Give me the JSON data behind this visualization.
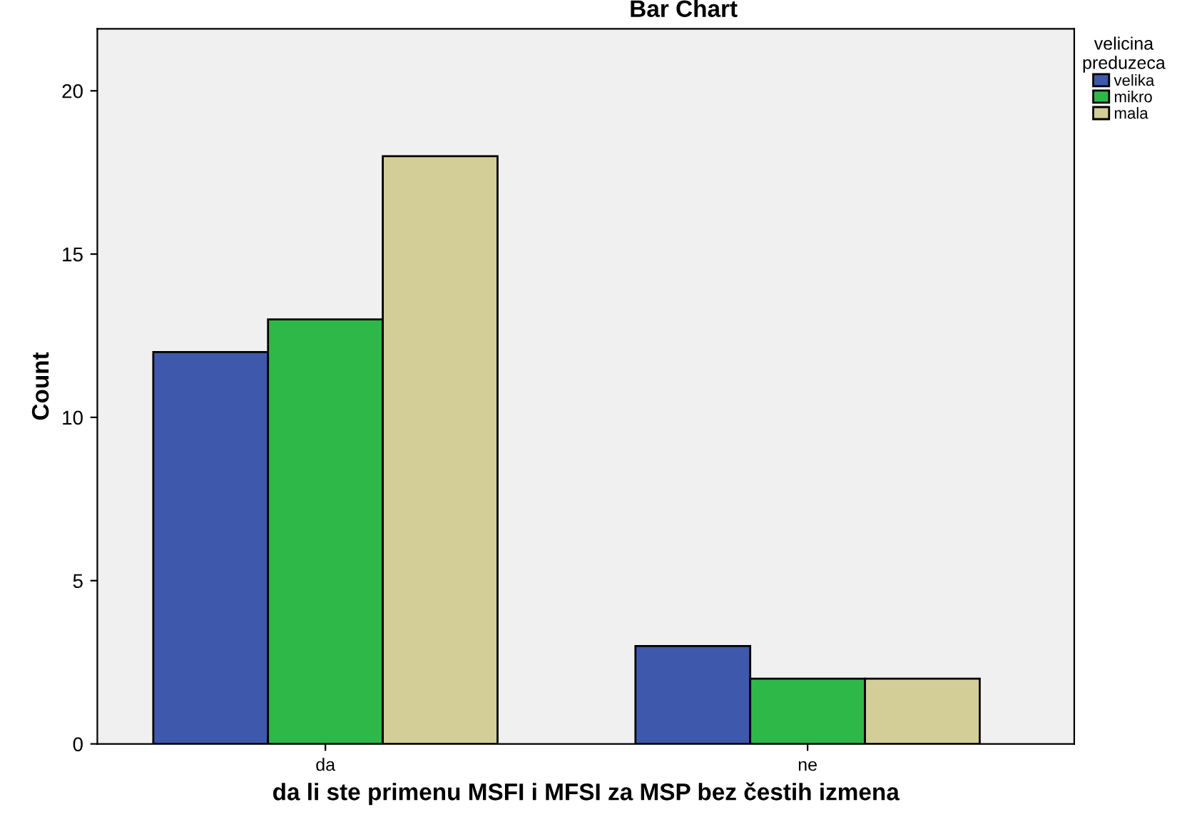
{
  "chart_data": {
    "type": "bar",
    "title": "Bar Chart",
    "xlabel": "da li ste primenu MSFI i MFSI za MSP bez čestih izmena",
    "ylabel": "Count",
    "legend_title": "velicina\npreduzeca",
    "categories": [
      "da",
      "ne"
    ],
    "series": [
      {
        "name": "velika",
        "color": "#3e58ac",
        "values": [
          12,
          3
        ]
      },
      {
        "name": "mikro",
        "color": "#2eb848",
        "values": [
          13,
          2
        ]
      },
      {
        "name": "mala",
        "color": "#d3ce97",
        "values": [
          18,
          2
        ]
      }
    ],
    "ylim": [
      0,
      21.9
    ],
    "yticks": [
      0,
      5,
      10,
      15,
      20
    ],
    "grid": false,
    "legend": "top right"
  }
}
